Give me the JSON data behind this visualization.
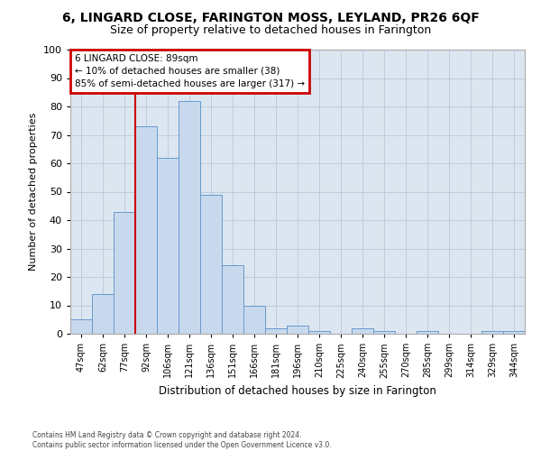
{
  "title": "6, LINGARD CLOSE, FARINGTON MOSS, LEYLAND, PR26 6QF",
  "subtitle": "Size of property relative to detached houses in Farington",
  "xlabel": "Distribution of detached houses by size in Farington",
  "ylabel": "Number of detached properties",
  "bar_labels": [
    "47sqm",
    "62sqm",
    "77sqm",
    "92sqm",
    "106sqm",
    "121sqm",
    "136sqm",
    "151sqm",
    "166sqm",
    "181sqm",
    "196sqm",
    "210sqm",
    "225sqm",
    "240sqm",
    "255sqm",
    "270sqm",
    "285sqm",
    "299sqm",
    "314sqm",
    "329sqm",
    "344sqm"
  ],
  "bar_values": [
    5,
    14,
    43,
    73,
    62,
    82,
    49,
    24,
    10,
    2,
    3,
    1,
    0,
    2,
    1,
    0,
    1,
    0,
    0,
    1,
    1
  ],
  "bar_color": "#c9d9ed",
  "bar_edge_color": "#6699cc",
  "grid_color": "#bbcce0",
  "plot_bg_color": "#dce6f0",
  "fig_bg_color": "#ffffff",
  "red_line_index": 2.5,
  "annotation_text": "6 LINGARD CLOSE: 89sqm\n← 10% of detached houses are smaller (38)\n85% of semi-detached houses are larger (317) →",
  "annotation_box_facecolor": "#ffffff",
  "annotation_box_edgecolor": "#cc0000",
  "footer_line1": "Contains HM Land Registry data © Crown copyright and database right 2024.",
  "footer_line2": "Contains public sector information licensed under the Open Government Licence v3.0.",
  "ylim_max": 100,
  "yticks": [
    0,
    10,
    20,
    30,
    40,
    50,
    60,
    70,
    80,
    90,
    100
  ],
  "title_fontsize": 10,
  "subtitle_fontsize": 9
}
